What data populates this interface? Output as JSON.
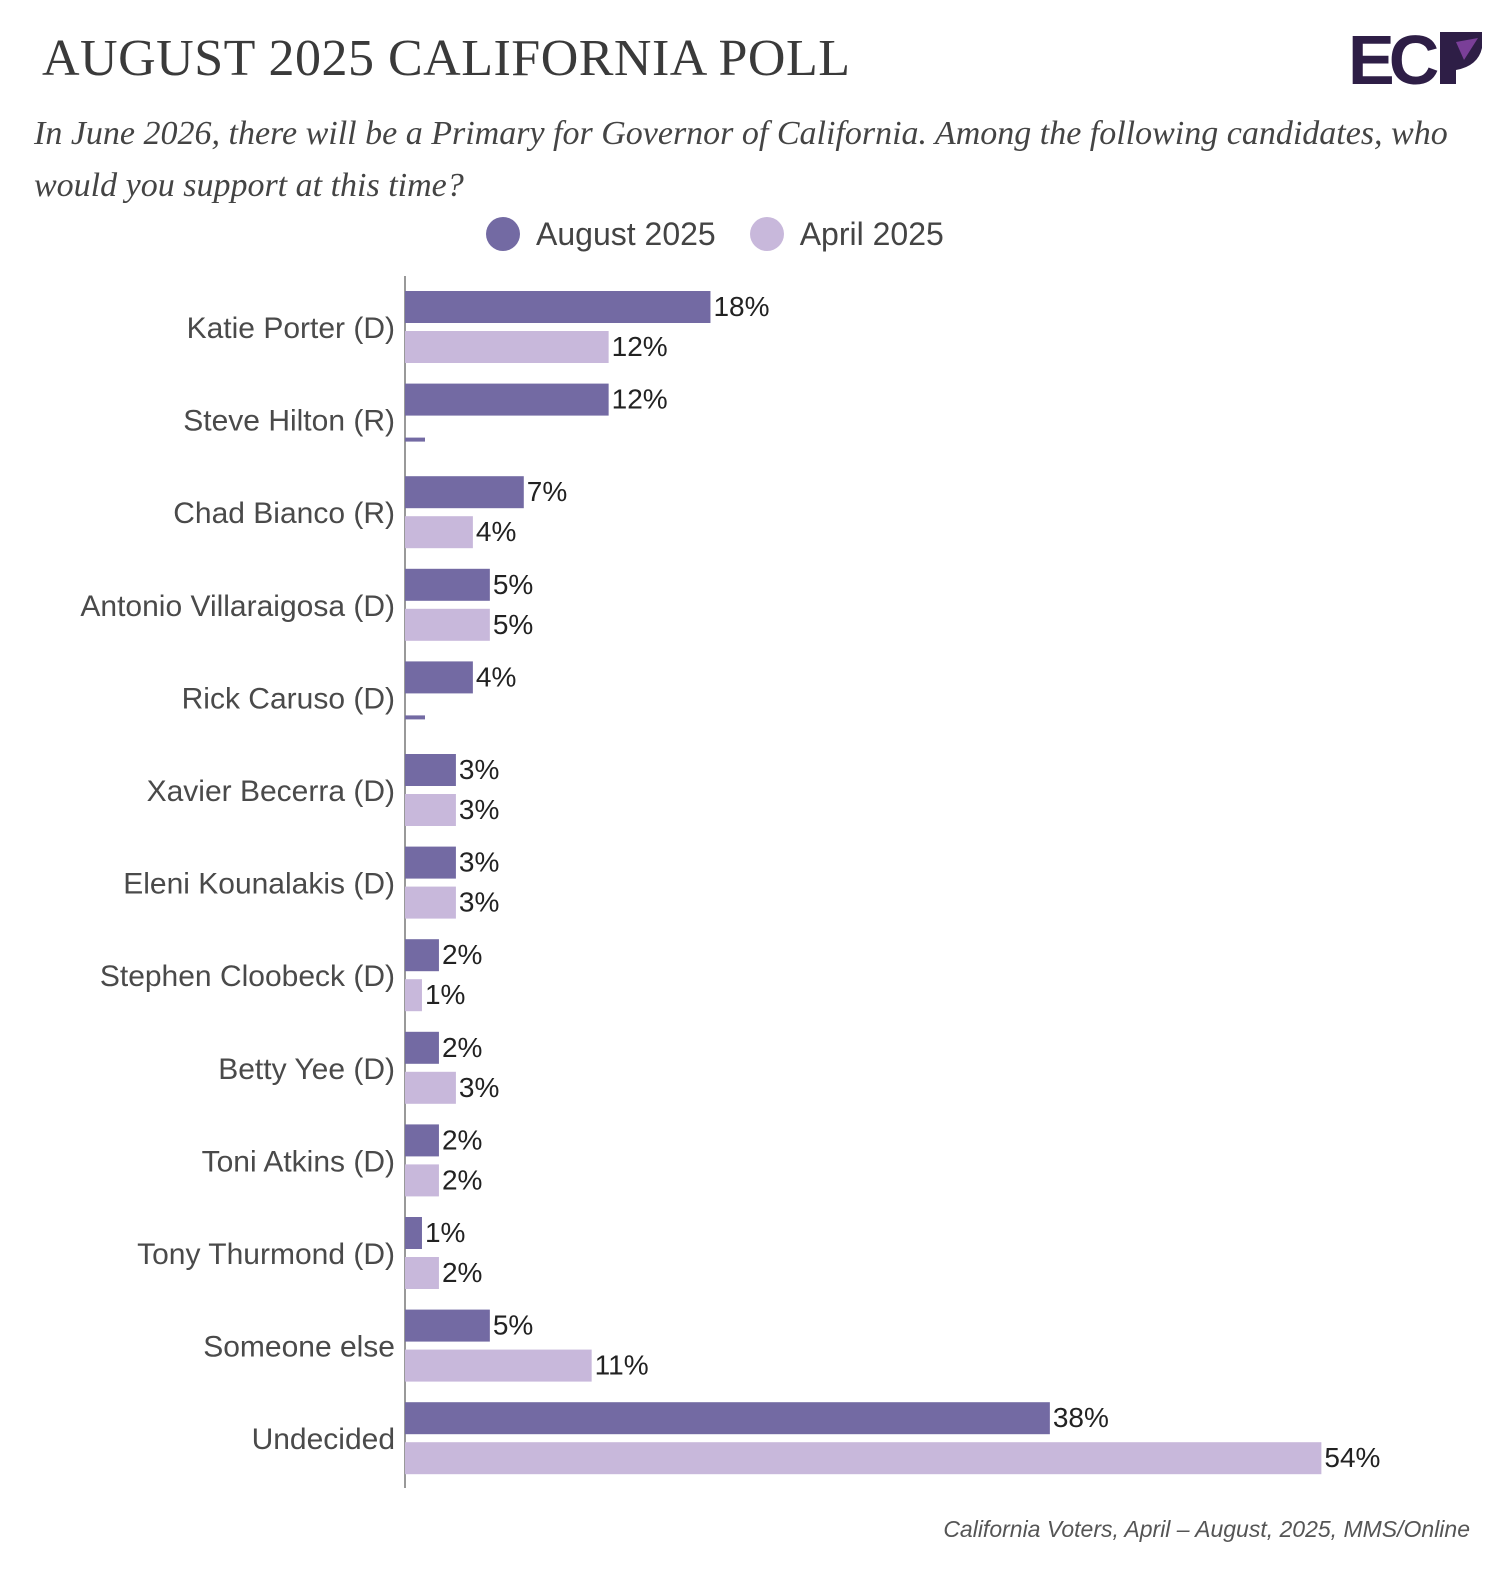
{
  "header": {
    "title": "AUGUST 2025 CALIFORNIA POLL",
    "question": "In June 2026, there will be a Primary for Governor of California. Among the following candidates, who would you support at this time?",
    "logo_text": "ECP"
  },
  "footer": {
    "source": "California Voters, April  – August, 2025, MMS/Online"
  },
  "colors": {
    "august": "#736aa3",
    "april": "#c8b8db",
    "logo_dark": "#2e1e46",
    "logo_accent": "#7a3f98"
  },
  "chart_data": {
    "type": "bar",
    "orientation": "horizontal",
    "categories": [
      "Katie Porter (D)",
      "Steve Hilton (R)",
      "Chad Bianco (R)",
      "Antonio Villaraigosa (D)",
      "Rick Caruso (D)",
      "Xavier Becerra (D)",
      "Eleni Kounalakis (D)",
      "Stephen Cloobeck (D)",
      "Betty Yee (D)",
      "Toni Atkins (D)",
      "Tony Thurmond (D)",
      "Someone else",
      "Undecided"
    ],
    "series": [
      {
        "name": "August 2025",
        "values": [
          18,
          12,
          7,
          5,
          4,
          3,
          3,
          2,
          2,
          2,
          1,
          5,
          38
        ],
        "labels": [
          "18%",
          "12%",
          "7%",
          "5%",
          "4%",
          "3%",
          "3%",
          "2%",
          "2%",
          "2%",
          "1%",
          "5%",
          "38%"
        ]
      },
      {
        "name": "April 2025",
        "values": [
          12,
          null,
          4,
          5,
          null,
          3,
          3,
          1,
          3,
          2,
          2,
          11,
          54
        ],
        "labels": [
          "12%",
          "",
          "4%",
          "5%",
          "",
          "3%",
          "3%",
          "1%",
          "3%",
          "2%",
          "2%",
          "11%",
          "54%"
        ]
      }
    ],
    "value_unit": "%",
    "xlim": [
      0,
      54
    ],
    "grid": false,
    "legend_position": "top"
  }
}
